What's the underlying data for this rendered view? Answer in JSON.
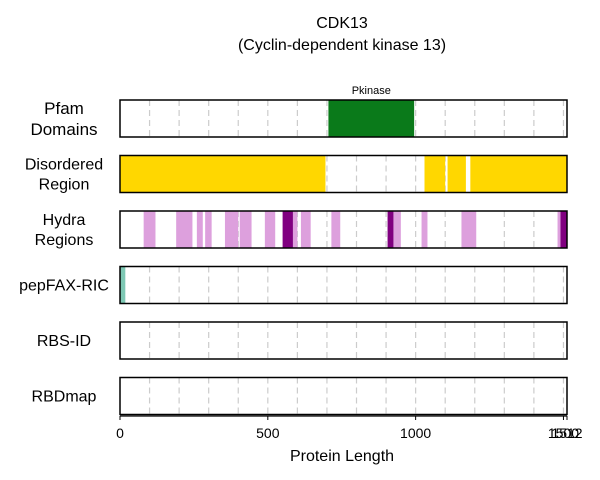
{
  "chart_data": {
    "type": "bar",
    "title": "CDK13",
    "subtitle": "(Cyclin-dependent kinase 13)",
    "xlabel": "Protein Length",
    "xlim": [
      0,
      1512
    ],
    "x_ticks": [
      "0",
      "500",
      "1000",
      "1500",
      "1512"
    ],
    "grid": true,
    "tracks": [
      {
        "label_lines": [
          "Pfam",
          "Domains"
        ],
        "segments": [
          {
            "start": 705,
            "end": 995,
            "color": "#0a7a1a",
            "label": "Pkinase"
          }
        ]
      },
      {
        "label_lines": [
          "Disordered",
          "Region"
        ],
        "segments": [
          {
            "start": 0,
            "end": 695,
            "color": "#ffd700"
          },
          {
            "start": 1030,
            "end": 1100,
            "color": "#ffd700"
          },
          {
            "start": 1108,
            "end": 1170,
            "color": "#ffd700"
          },
          {
            "start": 1185,
            "end": 1512,
            "color": "#ffd700"
          }
        ]
      },
      {
        "label_lines": [
          "Hydra",
          "Regions"
        ],
        "segments": [
          {
            "start": 80,
            "end": 120,
            "color": "#dda0dd"
          },
          {
            "start": 190,
            "end": 245,
            "color": "#dda0dd"
          },
          {
            "start": 260,
            "end": 280,
            "color": "#dda0dd"
          },
          {
            "start": 288,
            "end": 310,
            "color": "#dda0dd"
          },
          {
            "start": 355,
            "end": 400,
            "color": "#dda0dd"
          },
          {
            "start": 405,
            "end": 445,
            "color": "#dda0dd"
          },
          {
            "start": 490,
            "end": 525,
            "color": "#dda0dd"
          },
          {
            "start": 550,
            "end": 585,
            "color": "#800080"
          },
          {
            "start": 585,
            "end": 600,
            "color": "#dda0dd"
          },
          {
            "start": 612,
            "end": 645,
            "color": "#dda0dd"
          },
          {
            "start": 715,
            "end": 745,
            "color": "#dda0dd"
          },
          {
            "start": 905,
            "end": 925,
            "color": "#800080"
          },
          {
            "start": 925,
            "end": 950,
            "color": "#dda0dd"
          },
          {
            "start": 1020,
            "end": 1040,
            "color": "#dda0dd"
          },
          {
            "start": 1155,
            "end": 1205,
            "color": "#dda0dd"
          },
          {
            "start": 1480,
            "end": 1490,
            "color": "#dda0dd"
          },
          {
            "start": 1490,
            "end": 1512,
            "color": "#800080"
          }
        ]
      },
      {
        "label_lines": [
          "pepFAX-RIC"
        ],
        "segments": [
          {
            "start": 0,
            "end": 18,
            "color": "#7ec8b4"
          }
        ]
      },
      {
        "label_lines": [
          "RBS-ID"
        ],
        "segments": []
      },
      {
        "label_lines": [
          "RBDmap"
        ],
        "segments": []
      }
    ]
  }
}
